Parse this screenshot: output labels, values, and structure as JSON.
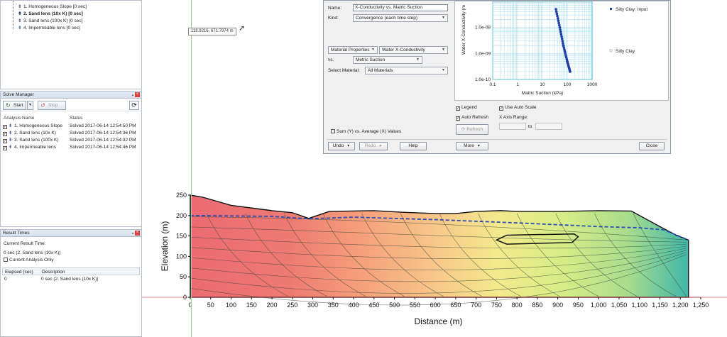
{
  "tree": {
    "items": [
      {
        "label": "1. Homogeneous Slope [0 sec]",
        "bold": false
      },
      {
        "label": "2. Sand lens (10x K) [0 sec]",
        "bold": true
      },
      {
        "label": "3. Sand lens (100x K) [0 sec]",
        "bold": false
      },
      {
        "label": "4. Impermeable lens [0 sec]",
        "bold": false
      }
    ]
  },
  "solve_manager": {
    "title": "Solve Manager",
    "start_label": "Start",
    "stop_label": "Stop",
    "col_name": "Analysis Name",
    "col_status": "Status",
    "analyses": [
      {
        "name": "1. Homogeneous Slope",
        "status": "Solved 2017-06-14 12:54:50 PM"
      },
      {
        "name": "2. Sand lens (10x K)",
        "status": "Solved 2017-06-14 12:54:36 PM"
      },
      {
        "name": "3. Sand lens (100x K)",
        "status": "Solved 2017-06-14 12:54:32 PM"
      },
      {
        "name": "4. Impermeable lens",
        "status": "Solved 2017-06-14 12:54:46 PM"
      }
    ]
  },
  "result_times": {
    "title": "Result Times",
    "current_label": "Current Result Time:",
    "current_value": "0 sec (2. Sand lens (10x K))",
    "current_only": "Current Analysis Only",
    "col_elapsed": "Elapsed (sec)",
    "col_desc": "Description",
    "row_elapsed": "0",
    "row_desc": "0 sec (2. Sand lens (10x K))"
  },
  "coord_tooltip": "118.9216, 671.7974 m",
  "dialog": {
    "name_label": "Name:",
    "name_value": "X-Conductivity vs. Matric Suction",
    "kind_label": "Kind:",
    "kind_value": "Convergence (each time step)",
    "y_prop": "Material Properties",
    "y_param": "Water X-Conductivity",
    "vs_label": "vs.",
    "x_param": "Metric Suction",
    "select_material_label": "Select Material:",
    "select_material_value": "All Materials",
    "sum_label": "Sum (Y) vs. Average (X) Values",
    "legend_label": "Legend",
    "auto_refresh_label": "Auto Refresh",
    "refresh_label": "Refresh",
    "use_auto_scale_label": "Use Auto Scale",
    "x_axis_range_label": "X Axis Range:",
    "to_label": "to",
    "undo_label": "Undo",
    "redo_label": "Redo",
    "help_label": "Help",
    "more_label": "More",
    "close_label": "Close"
  },
  "mini_chart": {
    "type": "scatter",
    "ylabel": "Water X-Conductivity (m",
    "xlabel": "Matric Suction (kPa)",
    "x_ticks": [
      "0.1",
      "1",
      "10",
      "100",
      "1000"
    ],
    "y_ticks": [
      "1.0e-08",
      "1.0e-09",
      "1.0e-10"
    ],
    "legend": [
      {
        "name": "Silty Clay: Input",
        "color": "#1f3fa8"
      },
      {
        "name": "Silty Clay",
        "color": "#1f3fa8"
      }
    ],
    "xlim": [
      0.1,
      1000
    ],
    "ylim": [
      1e-10,
      1e-07
    ],
    "points": [
      [
        35,
        5e-08
      ],
      [
        50,
        1e-08
      ],
      [
        70,
        2e-09
      ],
      [
        100,
        5e-10
      ],
      [
        130,
        2e-10
      ]
    ]
  },
  "chart_data": {
    "type": "area",
    "xlabel": "Distance (m)",
    "ylabel": "Elevation (m)",
    "xlim": [
      0,
      1250
    ],
    "ylim": [
      0,
      250
    ],
    "x_ticks": [
      "0",
      "50",
      "100",
      "150",
      "200",
      "250",
      "300",
      "350",
      "400",
      "450",
      "500",
      "550",
      "600",
      "650",
      "700",
      "750",
      "800",
      "850",
      "900",
      "950",
      "1,000",
      "1,050",
      "1,100",
      "1,150",
      "1,200",
      "1,250"
    ],
    "y_ticks": [
      "0",
      "50",
      "100",
      "150",
      "200",
      "250"
    ],
    "ground_surface": [
      [
        0,
        250
      ],
      [
        30,
        245
      ],
      [
        100,
        225
      ],
      [
        200,
        212
      ],
      [
        250,
        207
      ],
      [
        290,
        193
      ],
      [
        340,
        210
      ],
      [
        450,
        212
      ],
      [
        520,
        208
      ],
      [
        600,
        205
      ],
      [
        650,
        205
      ],
      [
        700,
        210
      ],
      [
        760,
        212
      ],
      [
        800,
        210
      ],
      [
        900,
        210
      ],
      [
        1000,
        212
      ],
      [
        1080,
        211
      ],
      [
        1150,
        173
      ],
      [
        1190,
        152
      ],
      [
        1220,
        140
      ],
      [
        1220,
        0
      ]
    ],
    "water_table": [
      [
        0,
        200
      ],
      [
        200,
        198
      ],
      [
        290,
        192
      ],
      [
        400,
        196
      ],
      [
        600,
        190
      ],
      [
        800,
        182
      ],
      [
        1000,
        173
      ],
      [
        1100,
        170
      ],
      [
        1160,
        165
      ],
      [
        1220,
        140
      ]
    ],
    "lens": [
      [
        750,
        140
      ],
      [
        775,
        152
      ],
      [
        940,
        155
      ],
      [
        950,
        148
      ],
      [
        935,
        134
      ],
      [
        775,
        130
      ]
    ]
  }
}
